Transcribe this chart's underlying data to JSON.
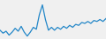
{
  "values": [
    38,
    32,
    36,
    28,
    34,
    42,
    36,
    46,
    34,
    26,
    34,
    44,
    40,
    70,
    90,
    60,
    38,
    44,
    38,
    44,
    40,
    46,
    42,
    48,
    44,
    50,
    48,
    54,
    52,
    56,
    52,
    58,
    56,
    60,
    56,
    62
  ],
  "line_color": "#2387c8",
  "line_width": 0.9,
  "background_color": "#f0f0f0",
  "ylim": [
    20,
    100
  ]
}
